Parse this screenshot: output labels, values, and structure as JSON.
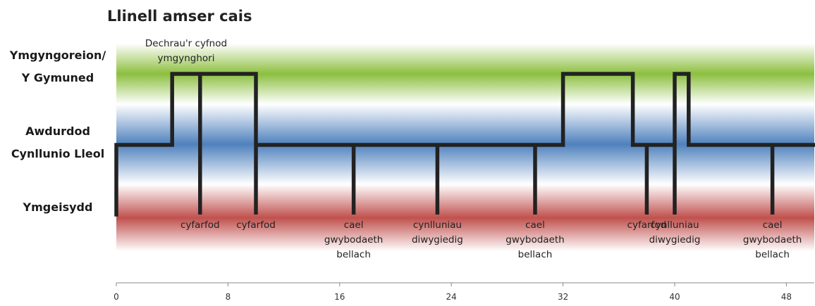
{
  "chart_data": {
    "type": "line",
    "title": "Llinell amser cais",
    "lanes": [
      {
        "level": 2,
        "label_lines": [
          "Ymgyngoreion/",
          "Y Gymuned"
        ],
        "color": "#8cbf3f"
      },
      {
        "level": 1,
        "label_lines": [
          "Awdurdod",
          "Cynllunio Lleol"
        ],
        "color": "#4f81bd"
      },
      {
        "level": 0,
        "label_lines": [
          "Ymgeisydd"
        ],
        "color": "#c0504d"
      }
    ],
    "xlim": [
      0,
      50
    ],
    "xticks": [
      0,
      8,
      16,
      24,
      32,
      40,
      48
    ],
    "series": [
      {
        "points": [
          [
            0,
            0
          ],
          [
            0,
            1
          ],
          [
            4,
            1
          ],
          [
            4,
            2
          ],
          [
            6,
            2
          ],
          [
            6,
            0
          ],
          [
            6,
            2
          ],
          [
            10,
            2
          ],
          [
            10,
            0
          ],
          [
            10,
            1
          ],
          [
            17,
            1
          ],
          [
            17,
            0
          ],
          [
            17,
            1
          ],
          [
            23,
            1
          ],
          [
            23,
            0
          ],
          [
            23,
            1
          ],
          [
            30,
            1
          ],
          [
            30,
            0
          ],
          [
            30,
            1
          ],
          [
            32,
            1
          ],
          [
            32,
            2
          ],
          [
            37,
            2
          ],
          [
            37,
            1
          ],
          [
            38,
            1
          ],
          [
            38,
            0
          ],
          [
            38,
            1
          ],
          [
            40,
            1
          ],
          [
            40,
            0
          ],
          [
            40,
            2
          ],
          [
            41,
            2
          ],
          [
            41,
            1
          ],
          [
            47,
            1
          ],
          [
            47,
            0
          ],
          [
            47,
            1
          ],
          [
            50,
            1
          ]
        ]
      }
    ],
    "annotations": [
      {
        "x": 5,
        "level": 2,
        "position": "above",
        "lines": [
          "Dechrau'r cyfnod",
          "ymgynghori"
        ]
      },
      {
        "x": 6,
        "level": 0,
        "position": "below",
        "lines": [
          "cyfarfod"
        ]
      },
      {
        "x": 10,
        "level": 0,
        "position": "below",
        "lines": [
          "cyfarfod"
        ]
      },
      {
        "x": 17,
        "level": 0,
        "position": "below",
        "lines": [
          "cael",
          "gwybodaeth",
          "bellach"
        ]
      },
      {
        "x": 23,
        "level": 0,
        "position": "below",
        "lines": [
          "cynlluniau",
          "diwygiedig"
        ]
      },
      {
        "x": 30,
        "level": 0,
        "position": "below",
        "lines": [
          "cael",
          "gwybodaeth",
          "bellach"
        ]
      },
      {
        "x": 38,
        "level": 0,
        "position": "below",
        "lines": [
          "cyfarfod"
        ]
      },
      {
        "x": 40,
        "level": 0,
        "position": "below",
        "lines": [
          "cynlluniau",
          "diwygiedig"
        ]
      },
      {
        "x": 47,
        "level": 0,
        "position": "below",
        "lines": [
          "cael",
          "gwybodaeth",
          "bellach"
        ]
      }
    ]
  }
}
